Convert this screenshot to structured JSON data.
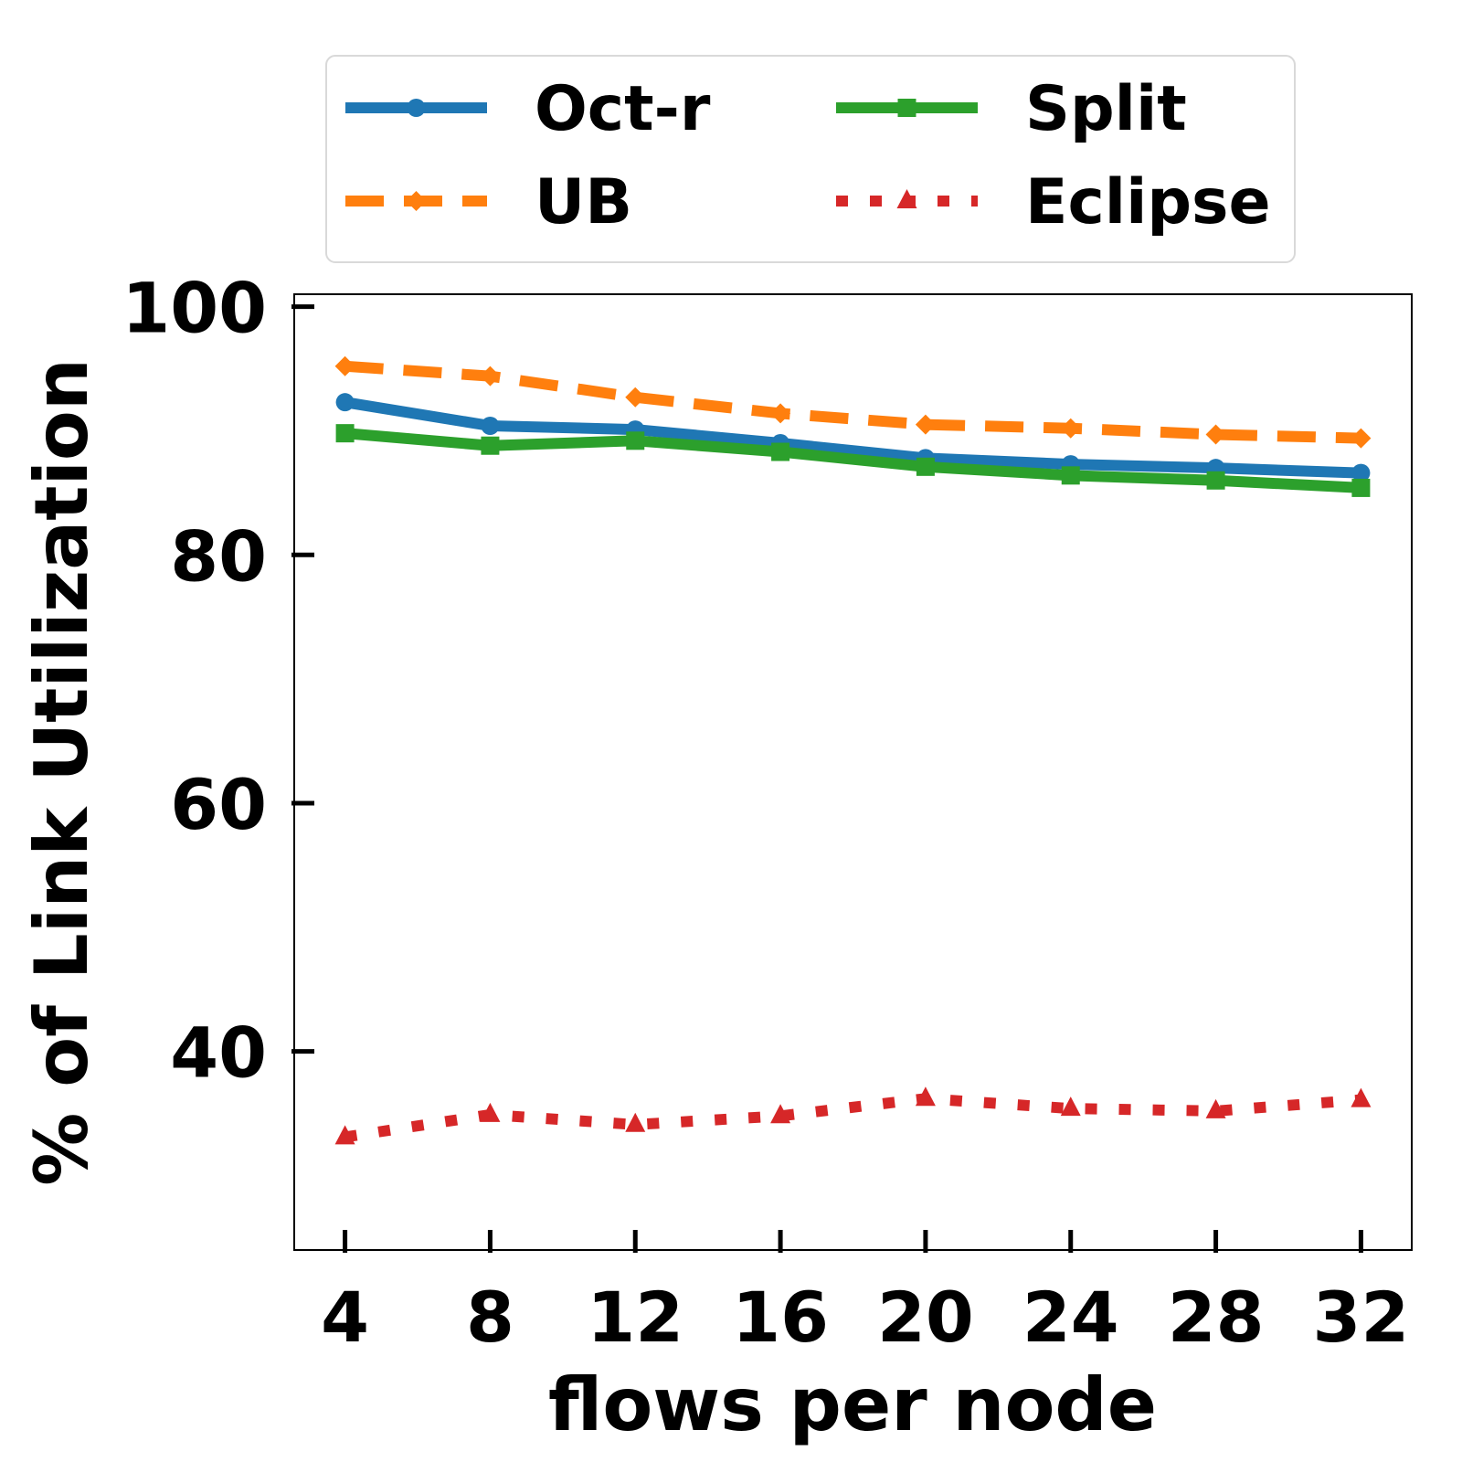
{
  "chart_data": {
    "type": "line",
    "title": "",
    "xlabel": "flows per node",
    "ylabel": "% of Link Utilization",
    "x": [
      4,
      8,
      12,
      16,
      20,
      24,
      28,
      32
    ],
    "xticks": [
      "4",
      "8",
      "12",
      "16",
      "20",
      "24",
      "28",
      "32"
    ],
    "xlim": [
      2.6,
      33.4
    ],
    "ylim": [
      24,
      101
    ],
    "yticks": [
      "40",
      "60",
      "80",
      "100"
    ],
    "grid": false,
    "legend_position": "top, outside plot, 2 columns",
    "series": [
      {
        "name": "Oct-r",
        "color": "#1f77b4",
        "linestyle": "solid",
        "marker": "circle",
        "values": [
          92.3,
          90.4,
          90.1,
          89.0,
          87.8,
          87.3,
          87.0,
          86.6
        ]
      },
      {
        "name": "UB",
        "color": "#ff7f0e",
        "linestyle": "dashed",
        "marker": "diamond",
        "values": [
          95.2,
          94.4,
          92.7,
          91.4,
          90.5,
          90.2,
          89.7,
          89.4
        ]
      },
      {
        "name": "Split",
        "color": "#2ca02c",
        "linestyle": "solid",
        "marker": "square",
        "values": [
          89.8,
          88.8,
          89.2,
          88.3,
          87.1,
          86.4,
          86.0,
          85.4
        ]
      },
      {
        "name": "Eclipse",
        "color": "#d62728",
        "linestyle": "dotted",
        "marker": "triangle",
        "values": [
          33.1,
          34.9,
          34.1,
          34.8,
          36.2,
          35.4,
          35.2,
          36.1
        ]
      }
    ]
  }
}
